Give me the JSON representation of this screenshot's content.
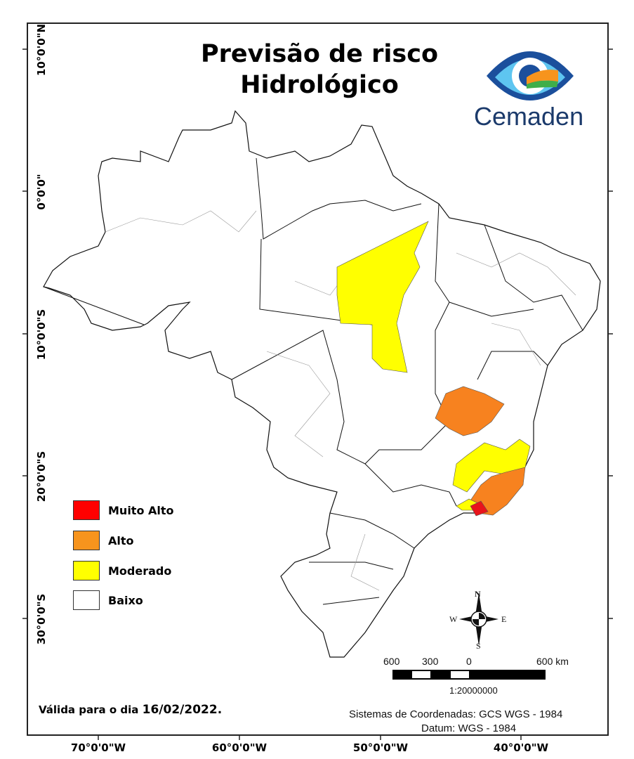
{
  "title": {
    "line1": "Previsão de risco",
    "line2": "Hidrológico"
  },
  "logo": {
    "text": "Cemaden"
  },
  "axes": {
    "latitudes": [
      "10°0'0\"N",
      "0°0'0\"",
      "10°0'0\"S",
      "20°0'0\"S",
      "30°0'0\"S"
    ],
    "longitudes": [
      "70°0'0\"W",
      "60°0'0\"W",
      "50°0'0\"W",
      "40°0'0\"W"
    ]
  },
  "legend": [
    {
      "label": "Muito Alto",
      "color": "#ff0000"
    },
    {
      "label": "Alto",
      "color": "#f7941d"
    },
    {
      "label": "Moderado",
      "color": "#ffff00"
    },
    {
      "label": "Baixo",
      "color": "#ffffff"
    }
  ],
  "compass": {
    "n": "N",
    "s": "S",
    "e": "E",
    "w": "W"
  },
  "scale": {
    "labels": [
      "600",
      "300",
      "0",
      "600 km"
    ],
    "ratio": "1:20000000"
  },
  "validity": {
    "prefix": "Válida para o dia",
    "date": "16/02/2022."
  },
  "crs": {
    "line1": "Sistemas de Coordenadas: GCS WGS - 1984",
    "line2": "Datum: WGS - 1984"
  }
}
